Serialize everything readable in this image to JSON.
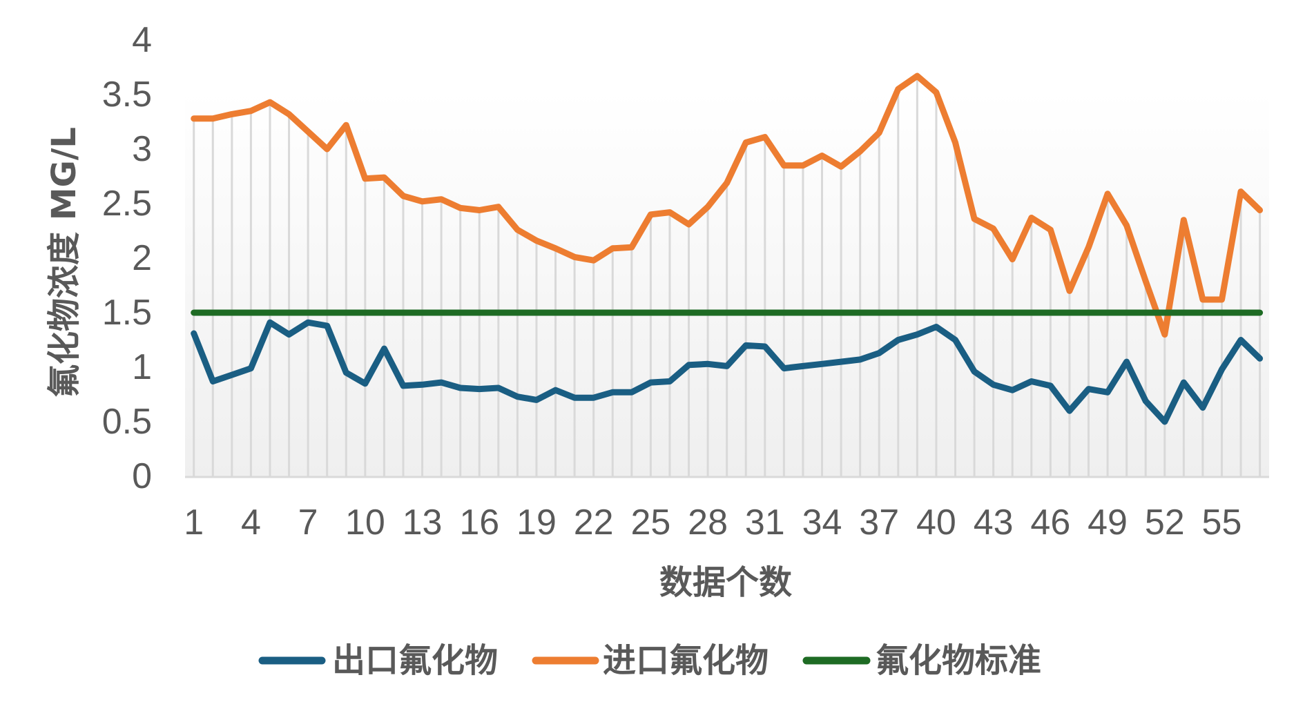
{
  "chart_data": {
    "type": "line",
    "title": "",
    "xlabel": "数据个数",
    "ylabel": "氟化物浓度 MG/L",
    "ylim": [
      0,
      4
    ],
    "yticks": [
      "0",
      "0.5",
      "1",
      "1.5",
      "2",
      "2.5",
      "3",
      "3.5",
      "4"
    ],
    "ytick_values": [
      0,
      0.5,
      1,
      1.5,
      2,
      2.5,
      3,
      3.5,
      4
    ],
    "x": [
      1,
      2,
      3,
      4,
      5,
      6,
      7,
      8,
      9,
      10,
      11,
      12,
      13,
      14,
      15,
      16,
      17,
      18,
      19,
      20,
      21,
      22,
      23,
      24,
      25,
      26,
      27,
      28,
      29,
      30,
      31,
      32,
      33,
      34,
      35,
      36,
      37,
      38,
      39,
      40,
      41,
      42,
      43,
      44,
      45,
      46,
      47,
      48,
      49,
      50,
      51,
      52,
      53,
      54,
      55,
      56,
      57
    ],
    "xtick_labels": [
      "1",
      "4",
      "7",
      "10",
      "13",
      "16",
      "19",
      "22",
      "25",
      "28",
      "31",
      "34",
      "37",
      "40",
      "43",
      "46",
      "49",
      "52",
      "55"
    ],
    "grid": "vertical drop lines",
    "legend_position": "bottom",
    "series": [
      {
        "name": "出口氟化物",
        "color": "#1a5e83",
        "values": [
          1.31,
          0.87,
          0.93,
          0.99,
          1.41,
          1.3,
          1.41,
          1.38,
          0.95,
          0.85,
          1.17,
          0.83,
          0.84,
          0.86,
          0.81,
          0.8,
          0.81,
          0.73,
          0.7,
          0.79,
          0.72,
          0.72,
          0.77,
          0.77,
          0.86,
          0.87,
          1.02,
          1.03,
          1.01,
          1.2,
          1.19,
          0.99,
          1.01,
          1.03,
          1.05,
          1.07,
          1.13,
          1.25,
          1.3,
          1.37,
          1.25,
          0.96,
          0.84,
          0.79,
          0.87,
          0.83,
          0.6,
          0.8,
          0.77,
          1.05,
          0.69,
          0.5,
          0.86,
          0.63,
          0.98,
          1.25,
          1.08
        ]
      },
      {
        "name": "进口氟化物",
        "color": "#ed7d31",
        "values": [
          3.28,
          3.28,
          3.32,
          3.35,
          3.43,
          3.32,
          3.16,
          3.0,
          3.22,
          2.73,
          2.74,
          2.57,
          2.52,
          2.54,
          2.46,
          2.44,
          2.47,
          2.26,
          2.16,
          2.09,
          2.01,
          1.98,
          2.09,
          2.1,
          2.4,
          2.42,
          2.31,
          2.47,
          2.69,
          3.06,
          3.11,
          2.85,
          2.85,
          2.94,
          2.84,
          2.98,
          3.15,
          3.55,
          3.67,
          3.52,
          3.06,
          2.36,
          2.27,
          1.99,
          2.37,
          2.26,
          1.7,
          2.1,
          2.59,
          2.3,
          1.79,
          1.3,
          2.35,
          1.62,
          1.62,
          2.61,
          2.44
        ]
      },
      {
        "name": "氟化物标准",
        "color": "#1e6b24",
        "values": [
          1.5,
          1.5,
          1.5,
          1.5,
          1.5,
          1.5,
          1.5,
          1.5,
          1.5,
          1.5,
          1.5,
          1.5,
          1.5,
          1.5,
          1.5,
          1.5,
          1.5,
          1.5,
          1.5,
          1.5,
          1.5,
          1.5,
          1.5,
          1.5,
          1.5,
          1.5,
          1.5,
          1.5,
          1.5,
          1.5,
          1.5,
          1.5,
          1.5,
          1.5,
          1.5,
          1.5,
          1.5,
          1.5,
          1.5,
          1.5,
          1.5,
          1.5,
          1.5,
          1.5,
          1.5,
          1.5,
          1.5,
          1.5,
          1.5,
          1.5,
          1.5,
          1.5,
          1.5,
          1.5,
          1.5,
          1.5,
          1.5
        ]
      }
    ]
  },
  "legend": {
    "items": [
      {
        "label": "出口氟化物",
        "color": "#1a5e83"
      },
      {
        "label": "进口氟化物",
        "color": "#ed7d31"
      },
      {
        "label": "氟化物标准",
        "color": "#1e6b24"
      }
    ]
  },
  "colors": {
    "text": "#595959",
    "gridline": "#d9d9d9",
    "plot_bg_top": "#ffffff",
    "plot_bg_bottom": "#efefef"
  }
}
